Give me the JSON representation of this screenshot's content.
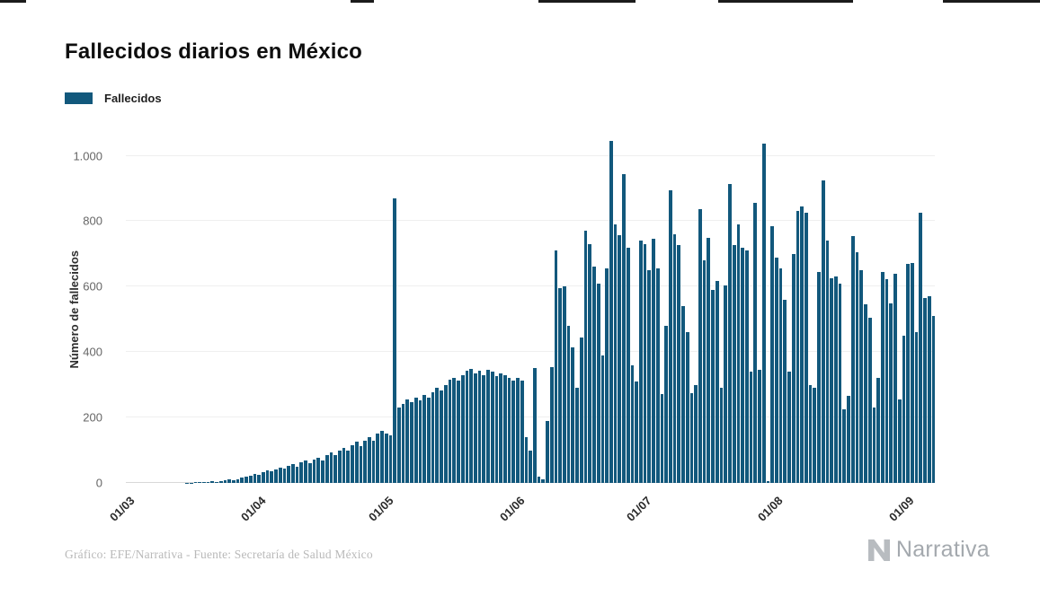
{
  "page": {
    "background": "#ffffff"
  },
  "header": {
    "title": "Fallecidos diarios en México"
  },
  "legend": {
    "label": "Fallecidos",
    "swatch_color": "#12587c"
  },
  "footer": {
    "credit": "Gráfico: EFE/Narrativa - Fuente: Secretaría de Salud México",
    "brand": "Narrativa"
  },
  "chart_data": {
    "type": "bar",
    "title": "Fallecidos diarios en México",
    "xlabel": "",
    "ylabel": "Número de fallecidos",
    "legend_position": "top-left",
    "grid": "horizontal",
    "bar_color": "#12587c",
    "ylim": [
      0,
      1070
    ],
    "n_days": 191,
    "yticks": [
      {
        "value": 0,
        "label": "0"
      },
      {
        "value": 200,
        "label": "200"
      },
      {
        "value": 400,
        "label": "400"
      },
      {
        "value": 600,
        "label": "600"
      },
      {
        "value": 800,
        "label": "800"
      },
      {
        "value": 1000,
        "label": "1.000"
      }
    ],
    "xticks": [
      {
        "day_index": 0,
        "label": "01/03"
      },
      {
        "day_index": 31,
        "label": "01/04"
      },
      {
        "day_index": 61,
        "label": "01/05"
      },
      {
        "day_index": 92,
        "label": "01/06"
      },
      {
        "day_index": 122,
        "label": "01/07"
      },
      {
        "day_index": 153,
        "label": "01/08"
      },
      {
        "day_index": 184,
        "label": "01/09"
      }
    ],
    "values": [
      0,
      0,
      0,
      0,
      0,
      0,
      0,
      0,
      0,
      0,
      0,
      0,
      0,
      0,
      1,
      1,
      2,
      2,
      4,
      3,
      5,
      4,
      6,
      8,
      10,
      9,
      12,
      16,
      20,
      22,
      28,
      25,
      32,
      38,
      35,
      42,
      48,
      44,
      52,
      58,
      50,
      62,
      68,
      60,
      72,
      78,
      70,
      84,
      92,
      86,
      98,
      108,
      100,
      115,
      125,
      112,
      130,
      140,
      128,
      150,
      158,
      150,
      145,
      870,
      230,
      242,
      255,
      246,
      260,
      252,
      268,
      262,
      278,
      292,
      284,
      300,
      315,
      322,
      312,
      330,
      342,
      348,
      336,
      342,
      330,
      346,
      340,
      326,
      336,
      330,
      320,
      312,
      320,
      312,
      140,
      100,
      352,
      20,
      12,
      188,
      355,
      710,
      595,
      600,
      480,
      415,
      290,
      445,
      772,
      730,
      660,
      610,
      390,
      655,
      1044,
      790,
      756,
      945,
      720,
      360,
      310,
      740,
      730,
      650,
      745,
      655,
      273,
      480,
      895,
      760,
      728,
      540,
      460,
      275,
      300,
      836,
      680,
      748,
      590,
      618,
      290,
      605,
      915,
      728,
      790,
      718,
      712,
      340,
      855,
      345,
      1037,
      5,
      785,
      690,
      655,
      560,
      340,
      700,
      830,
      845,
      826,
      300,
      292,
      645,
      926,
      740,
      625,
      632,
      610,
      225,
      266,
      755,
      705,
      650,
      545,
      505,
      230,
      320,
      645,
      624,
      550,
      640,
      255,
      450,
      670,
      672,
      460,
      825,
      565,
      570,
      510
    ]
  }
}
